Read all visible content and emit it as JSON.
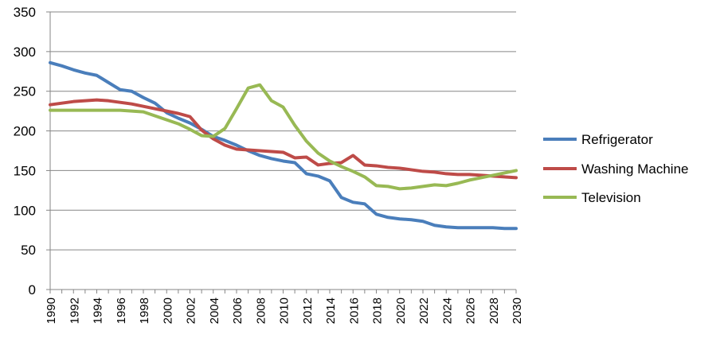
{
  "chart_data": {
    "type": "line",
    "title": "",
    "xlabel": "",
    "ylabel": "",
    "ylim": [
      0,
      350
    ],
    "yticks": [
      0,
      50,
      100,
      150,
      200,
      250,
      300,
      350
    ],
    "xlim": [
      1990,
      2030
    ],
    "xticks": [
      "1990",
      "1992",
      "1994",
      "1996",
      "1998",
      "2000",
      "2002",
      "2004",
      "2006",
      "2008",
      "2010",
      "2012",
      "2014",
      "2016",
      "2018",
      "2020",
      "2022",
      "2024",
      "2026",
      "2028",
      "2030"
    ],
    "grid": "horizontal",
    "legend_position": "right",
    "x": [
      1990,
      1991,
      1992,
      1993,
      1994,
      1995,
      1996,
      1997,
      1998,
      1999,
      2000,
      2001,
      2002,
      2003,
      2004,
      2005,
      2006,
      2007,
      2008,
      2009,
      2010,
      2011,
      2012,
      2013,
      2014,
      2015,
      2016,
      2017,
      2018,
      2019,
      2020,
      2021,
      2022,
      2023,
      2024,
      2025,
      2026,
      2027,
      2028,
      2029,
      2030
    ],
    "series": [
      {
        "name": "Refrigerator",
        "color": "#4a7ebb",
        "values": [
          286,
          282,
          277,
          273,
          270,
          261,
          252,
          250,
          242,
          235,
          223,
          216,
          210,
          202,
          193,
          188,
          182,
          175,
          169,
          165,
          162,
          160,
          146,
          143,
          137,
          116,
          110,
          108,
          95,
          91,
          89,
          88,
          86,
          81,
          79,
          78,
          78,
          78,
          78,
          77,
          77
        ]
      },
      {
        "name": "Washing Machine",
        "color": "#be4b48",
        "values": [
          233,
          235,
          237,
          238,
          239,
          238,
          236,
          234,
          231,
          228,
          225,
          222,
          218,
          201,
          190,
          182,
          177,
          176,
          175,
          174,
          173,
          166,
          167,
          157,
          159,
          160,
          169,
          157,
          156,
          154,
          153,
          151,
          149,
          148,
          146,
          145,
          145,
          144,
          143,
          142,
          141
        ]
      },
      {
        "name": "Television",
        "color": "#98b954",
        "values": [
          226,
          226,
          226,
          226,
          226,
          226,
          226,
          225,
          224,
          219,
          214,
          209,
          202,
          194,
          193,
          203,
          228,
          254,
          258,
          238,
          230,
          207,
          187,
          172,
          162,
          155,
          149,
          142,
          131,
          130,
          127,
          128,
          130,
          132,
          131,
          134,
          138,
          141,
          144,
          147,
          150
        ]
      }
    ]
  }
}
